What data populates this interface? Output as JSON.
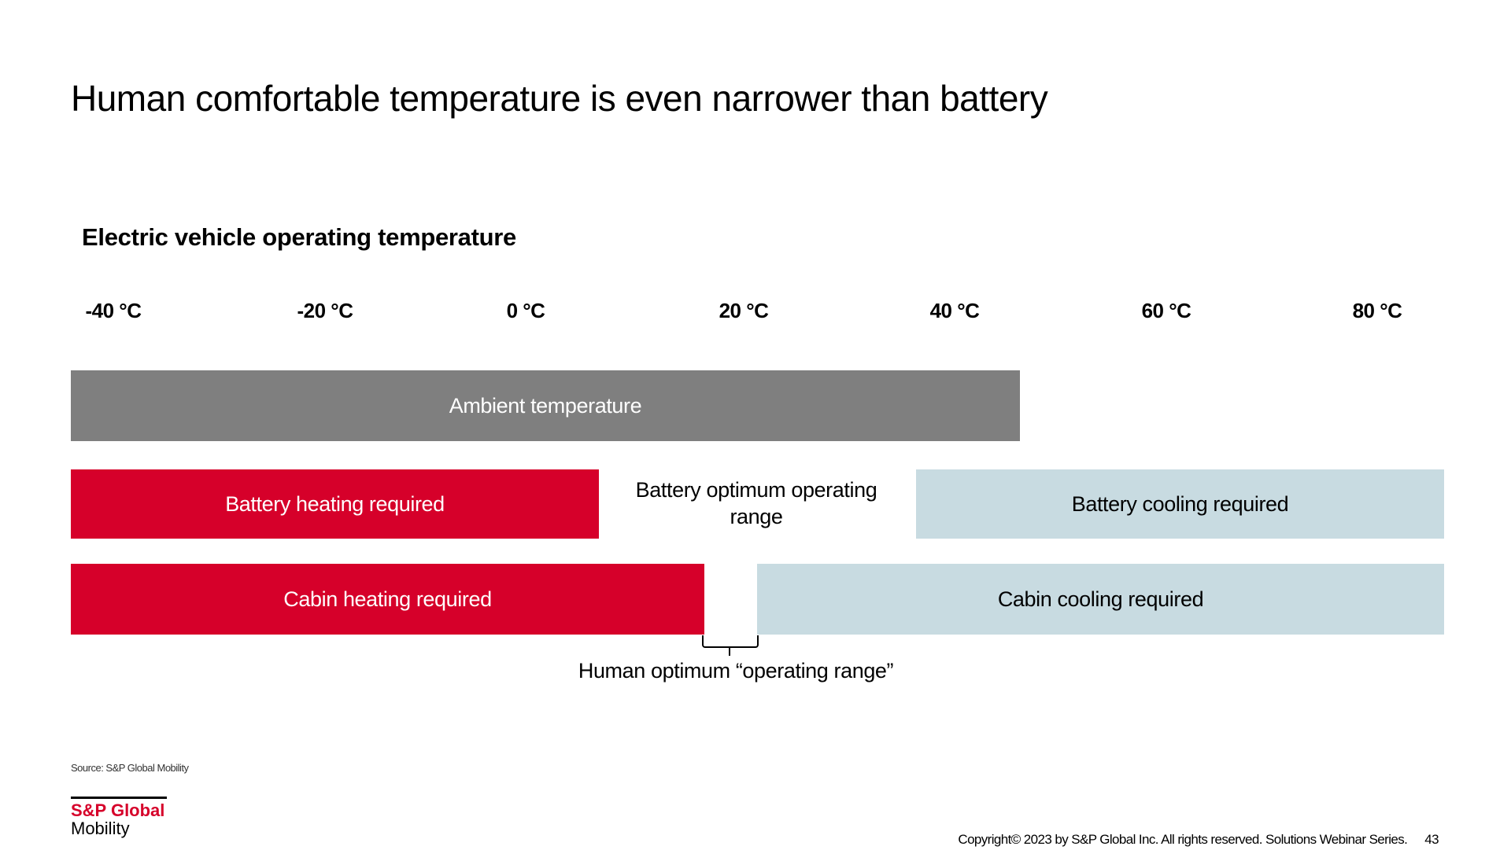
{
  "title": "Human comfortable temperature is even narrower than battery",
  "chart": {
    "subtitle": "Electric vehicle operating temperature",
    "ticks": [
      "-40 °C",
      "-20 °C",
      "0 °C",
      "20 °C",
      "40 °C",
      "60 °C",
      "80 °C"
    ],
    "ambient": "Ambient temperature",
    "battery_heating": "Battery heating required",
    "battery_optimum": "Battery optimum operating range",
    "battery_cooling": "Battery cooling required",
    "cabin_heating": "Cabin heating required",
    "cabin_cooling": "Cabin cooling required",
    "human_optimum": "Human optimum “operating range”"
  },
  "colors": {
    "heating": "#d6002a",
    "cooling": "#c8dbe1",
    "ambient": "#7f7f7f"
  },
  "footer": {
    "source": "Source: S&P Global Mobility",
    "logo_top": "S&P Global",
    "logo_bottom": "Mobility",
    "copyright": "Copyright© 2023 by S&P Global Inc. All rights reserved. Solutions Webinar Series.",
    "page_number": "43"
  }
}
